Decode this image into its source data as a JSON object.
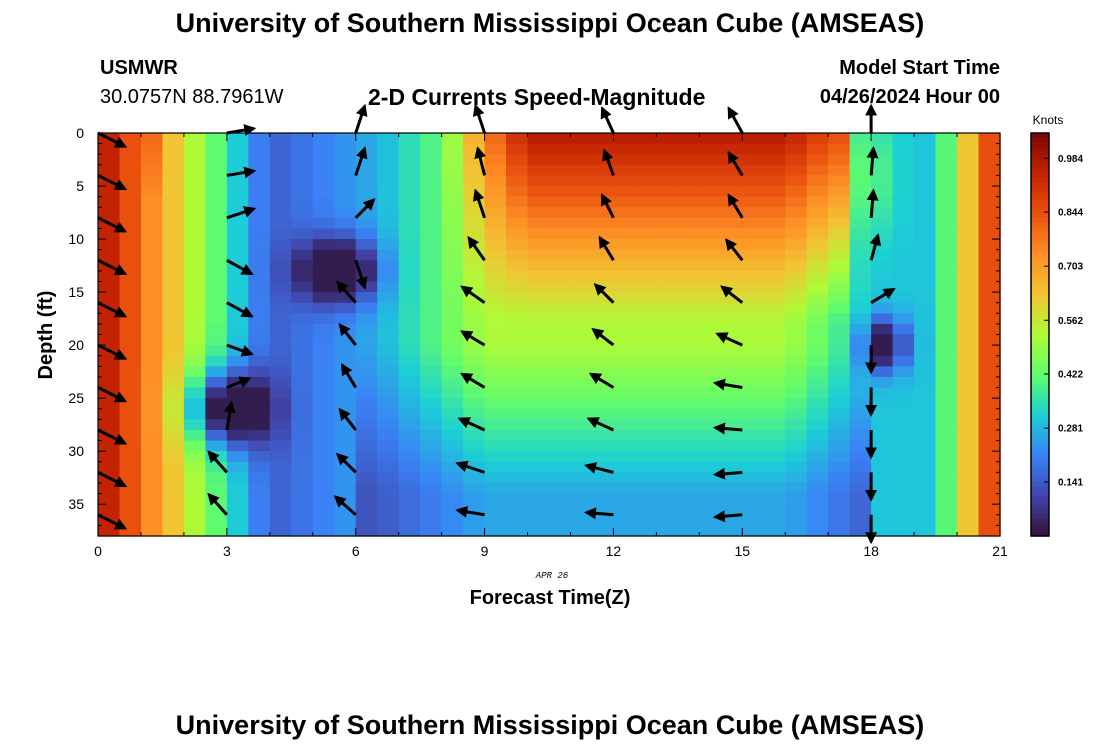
{
  "header": {
    "title": "University of Southern Mississippi Ocean Cube (AMSEAS)",
    "station": "USMWR",
    "coords": "30.0757N  88.7961W",
    "subtitle": "2-D Currents Speed-Magnitude",
    "model_label": "Model Start Time",
    "model_time": "04/26/2024 Hour 00"
  },
  "footer": {
    "title": "University of Southern Mississippi Ocean Cube (AMSEAS)"
  },
  "chart_data": {
    "type": "heatmap",
    "title": "2-D Currents Speed-Magnitude",
    "xlabel": "Forecast Time(Z)",
    "ylabel": "Depth (ft)",
    "date_label": "APR 26",
    "xlim": [
      0,
      21
    ],
    "ylim": [
      0,
      38
    ],
    "xticks": [
      0,
      3,
      6,
      9,
      12,
      15,
      18,
      21
    ],
    "yticks": [
      0,
      5,
      10,
      15,
      20,
      25,
      30,
      35
    ],
    "colorbar": {
      "label": "Knots",
      "ticks": [
        "0.984",
        "0.844",
        "0.703",
        "0.562",
        "0.422",
        "0.281",
        "0.141"
      ],
      "tick_values": [
        0.984,
        0.844,
        0.703,
        0.562,
        0.422,
        0.281,
        0.141
      ],
      "range": [
        0.0,
        1.05
      ]
    },
    "arrow_times": [
      0,
      3,
      6,
      9,
      12,
      15,
      18
    ],
    "arrow_depths": [
      0,
      4,
      8,
      12,
      16,
      20,
      24,
      28,
      32,
      36
    ],
    "arrows": [
      [
        [
          0.6,
          -0.3
        ],
        [
          0.6,
          -0.3
        ],
        [
          0.6,
          -0.3
        ],
        [
          0.6,
          -0.3
        ],
        [
          0.6,
          -0.3
        ],
        [
          0.6,
          -0.3
        ],
        [
          0.6,
          -0.3
        ],
        [
          0.6,
          -0.3
        ],
        [
          0.6,
          -0.3
        ],
        [
          0.6,
          -0.3
        ]
      ],
      [
        [
          0.6,
          0.1
        ],
        [
          0.6,
          0.1
        ],
        [
          0.6,
          0.2
        ],
        [
          0.55,
          -0.3
        ],
        [
          0.55,
          -0.3
        ],
        [
          0.55,
          -0.2
        ],
        [
          0.5,
          0.2
        ],
        [
          0.1,
          0.6
        ],
        [
          -0.4,
          0.45
        ],
        [
          -0.4,
          0.45
        ]
      ],
      [
        [
          0.2,
          0.6
        ],
        [
          0.2,
          0.6
        ],
        [
          0.4,
          0.4
        ],
        [
          0.2,
          -0.6
        ],
        [
          -0.4,
          0.45
        ],
        [
          -0.35,
          0.45
        ],
        [
          -0.3,
          0.5
        ],
        [
          -0.35,
          0.45
        ],
        [
          -0.4,
          0.4
        ],
        [
          -0.45,
          0.4
        ]
      ],
      [
        [
          -0.2,
          0.6
        ],
        [
          -0.15,
          0.6
        ],
        [
          -0.2,
          0.6
        ],
        [
          -0.35,
          0.5
        ],
        [
          -0.5,
          0.35
        ],
        [
          -0.5,
          0.3
        ],
        [
          -0.5,
          0.3
        ],
        [
          -0.55,
          0.25
        ],
        [
          -0.6,
          0.2
        ],
        [
          -0.6,
          0.1
        ]
      ],
      [
        [
          -0.25,
          0.55
        ],
        [
          -0.2,
          0.55
        ],
        [
          -0.25,
          0.5
        ],
        [
          -0.3,
          0.5
        ],
        [
          -0.4,
          0.4
        ],
        [
          -0.45,
          0.35
        ],
        [
          -0.5,
          0.3
        ],
        [
          -0.55,
          0.25
        ],
        [
          -0.6,
          0.15
        ],
        [
          -0.6,
          0.05
        ]
      ],
      [
        [
          -0.3,
          0.55
        ],
        [
          -0.3,
          0.5
        ],
        [
          -0.3,
          0.5
        ],
        [
          -0.35,
          0.45
        ],
        [
          -0.45,
          0.35
        ],
        [
          -0.55,
          0.25
        ],
        [
          -0.6,
          0.1
        ],
        [
          -0.6,
          0.05
        ],
        [
          -0.6,
          -0.05
        ],
        [
          -0.6,
          -0.05
        ]
      ],
      [
        [
          0,
          0.6
        ],
        [
          0.05,
          0.6
        ],
        [
          0.05,
          0.6
        ],
        [
          0.15,
          0.55
        ],
        [
          0.5,
          0.3
        ],
        [
          0,
          -0.6
        ],
        [
          0,
          -0.6
        ],
        [
          0,
          -0.6
        ],
        [
          0,
          -0.6
        ],
        [
          0,
          -0.6
        ]
      ]
    ]
  }
}
